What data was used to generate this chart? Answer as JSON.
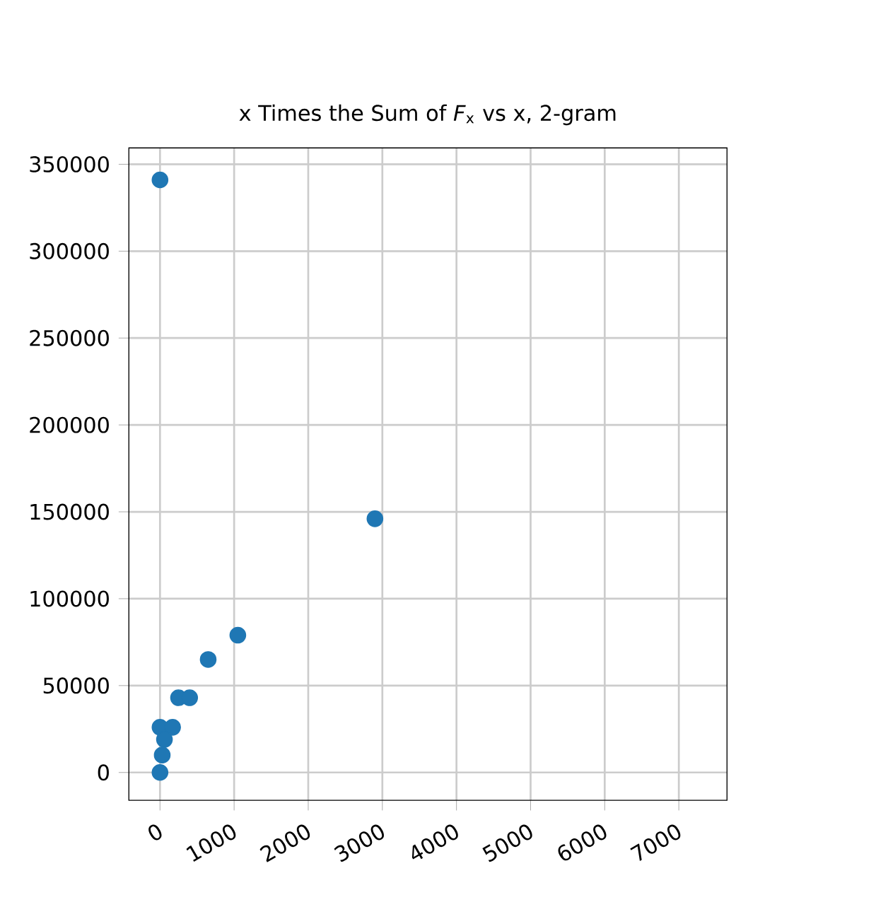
{
  "chart_data": {
    "type": "scatter",
    "title": "x Times the Sum of *F*$_{x}$ vs x, 2-gram",
    "series": [
      {
        "color": "#1f77b4",
        "x": [
          0,
          2900,
          1050,
          650,
          250,
          400,
          0,
          170,
          60,
          30,
          0
        ],
        "values": [
          341000,
          146000,
          79000,
          65000,
          43000,
          43000,
          26000,
          26000,
          19000,
          10000,
          0
        ]
      }
    ],
    "xlim": [
      -420,
      7650
    ],
    "ylim": [
      -16000,
      359400
    ],
    "xticks": [
      0,
      1000,
      2000,
      3000,
      4000,
      5000,
      6000,
      7000
    ],
    "yticks": [
      0,
      50000,
      100000,
      150000,
      200000,
      250000,
      300000,
      350000
    ],
    "grid": true
  }
}
